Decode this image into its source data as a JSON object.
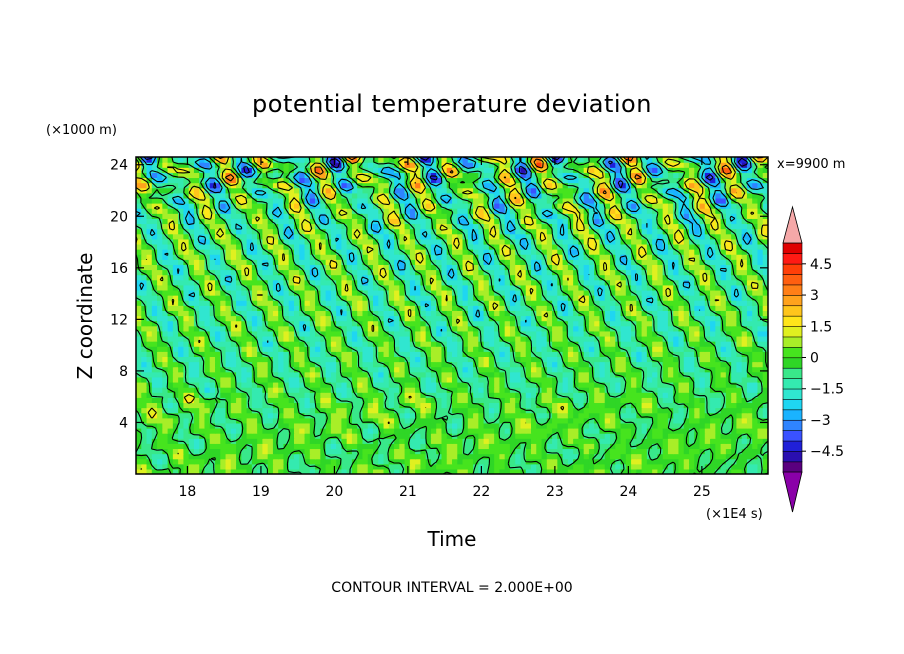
{
  "chart_data": {
    "type": "heatmap",
    "title": "potential temperature deviation",
    "xlabel": "Time",
    "ylabel": "Z coordinate",
    "x_unit": "(×1E4 s)",
    "y_unit": "(×1000 m)",
    "annotation": "x=9900 m",
    "footer": "CONTOUR INTERVAL = 2.000E+00",
    "xlim": [
      17.3,
      25.9
    ],
    "ylim": [
      0,
      24.6
    ],
    "x_ticks": [
      "18",
      "19",
      "20",
      "21",
      "22",
      "23",
      "24",
      "25"
    ],
    "y_ticks": [
      "4",
      "8",
      "12",
      "16",
      "20",
      "24"
    ],
    "colorbar": {
      "labels": [
        "4.5",
        "3",
        "1.5",
        "0",
        "-1.5",
        "-3",
        "-4.5"
      ],
      "levels": [
        -5.0,
        -4.5,
        -4.0,
        -3.5,
        -3.0,
        -2.5,
        -2.0,
        -1.5,
        -1.0,
        -0.5,
        0.0,
        0.5,
        1.0,
        1.5,
        2.0,
        2.5,
        3.0,
        3.5,
        4.0,
        4.5,
        5.0
      ],
      "colors": [
        "#5a007f",
        "#2a0fb0",
        "#2020d8",
        "#3a52ff",
        "#2f84ff",
        "#1ab3ff",
        "#1fd6f2",
        "#30e6d0",
        "#34eab0",
        "#39e88a",
        "#2fd626",
        "#46e41e",
        "#a8ee28",
        "#e0f020",
        "#ffe51a",
        "#ffc51c",
        "#ffa21d",
        "#ff7f17",
        "#ff5f10",
        "#ff3f08",
        "#ff1a14",
        "#e00000"
      ],
      "under_color": "#8a00a8",
      "over_color": "#f5a8a8"
    }
  }
}
